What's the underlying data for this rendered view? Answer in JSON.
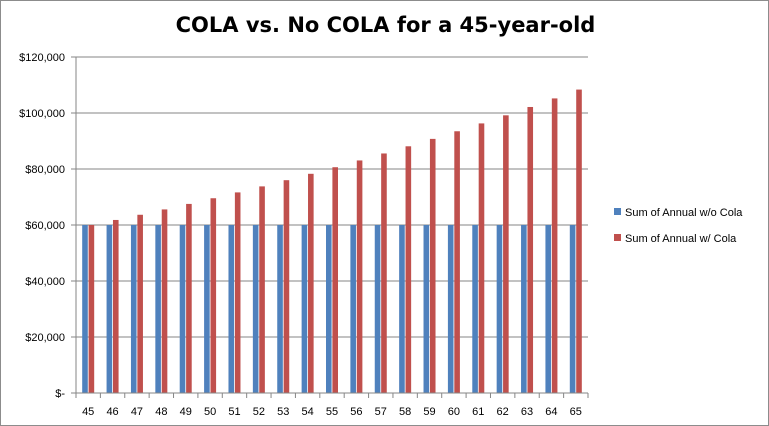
{
  "chart_data": {
    "type": "bar",
    "title": "COLA vs. No COLA for a 45-year-old",
    "xlabel": "",
    "ylabel": "",
    "categories": [
      "45",
      "46",
      "47",
      "48",
      "49",
      "50",
      "51",
      "52",
      "53",
      "54",
      "55",
      "56",
      "57",
      "58",
      "59",
      "60",
      "61",
      "62",
      "63",
      "64",
      "65"
    ],
    "series": [
      {
        "name": "Sum of Annual w/o Cola",
        "color": "#4f81bd",
        "values": [
          60000,
          60000,
          60000,
          60000,
          60000,
          60000,
          60000,
          60000,
          60000,
          60000,
          60000,
          60000,
          60000,
          60000,
          60000,
          60000,
          60000,
          60000,
          60000,
          60000,
          60000
        ]
      },
      {
        "name": "Sum of Annual w/ Cola",
        "color": "#c0504d",
        "values": [
          60000,
          61800,
          63654,
          65564,
          67531,
          69556,
          71643,
          73792,
          76006,
          78286,
          80635,
          83054,
          85546,
          88112,
          90755,
          93478,
          96282,
          99171,
          102146,
          105210,
          108367
        ]
      }
    ],
    "ylim": [
      0,
      120000
    ],
    "yticks": [
      0,
      20000,
      40000,
      60000,
      80000,
      100000,
      120000
    ],
    "ytick_labels": [
      "$-",
      "$20,000",
      "$40,000",
      "$60,000",
      "$80,000",
      "$100,000",
      "$120,000"
    ],
    "grid": true,
    "legend_position": "right"
  }
}
